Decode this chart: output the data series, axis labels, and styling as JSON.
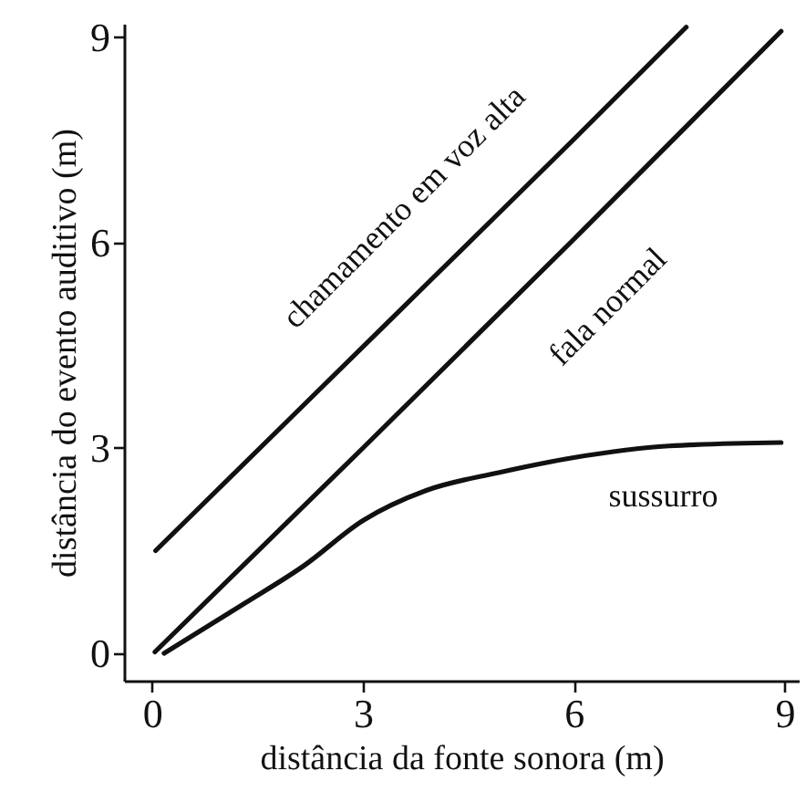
{
  "chart_data": {
    "type": "line",
    "xlabel": "distância da fonte sonora (m)",
    "ylabel": "distância do evento auditivo (m)",
    "xlim": [
      -0.4,
      9.2
    ],
    "ylim": [
      -0.4,
      9.2
    ],
    "xticks": [
      0,
      3,
      6,
      9
    ],
    "yticks": [
      0,
      3,
      6,
      9
    ],
    "grid": false,
    "marker": "none",
    "line_style": "solid",
    "series": [
      {
        "name": "chamamento em voz alta",
        "color": "#111111",
        "x": [
          0.05,
          2,
          4,
          6,
          7.6
        ],
        "values": [
          1.5,
          3.47,
          5.49,
          7.51,
          9.15
        ]
      },
      {
        "name": "fala normal",
        "color": "#111111",
        "x": [
          0.04,
          3,
          6,
          8.95
        ],
        "values": [
          0.02,
          3.0,
          6.05,
          9.09
        ]
      },
      {
        "name": "sussurro",
        "color": "#111111",
        "x": [
          0.17,
          1.3,
          2.16,
          3.0,
          3.9,
          4.93,
          6.0,
          7.35,
          8.95
        ],
        "values": [
          0,
          0.72,
          1.28,
          1.94,
          2.38,
          2.64,
          2.86,
          3.03,
          3.08
        ]
      }
    ]
  }
}
